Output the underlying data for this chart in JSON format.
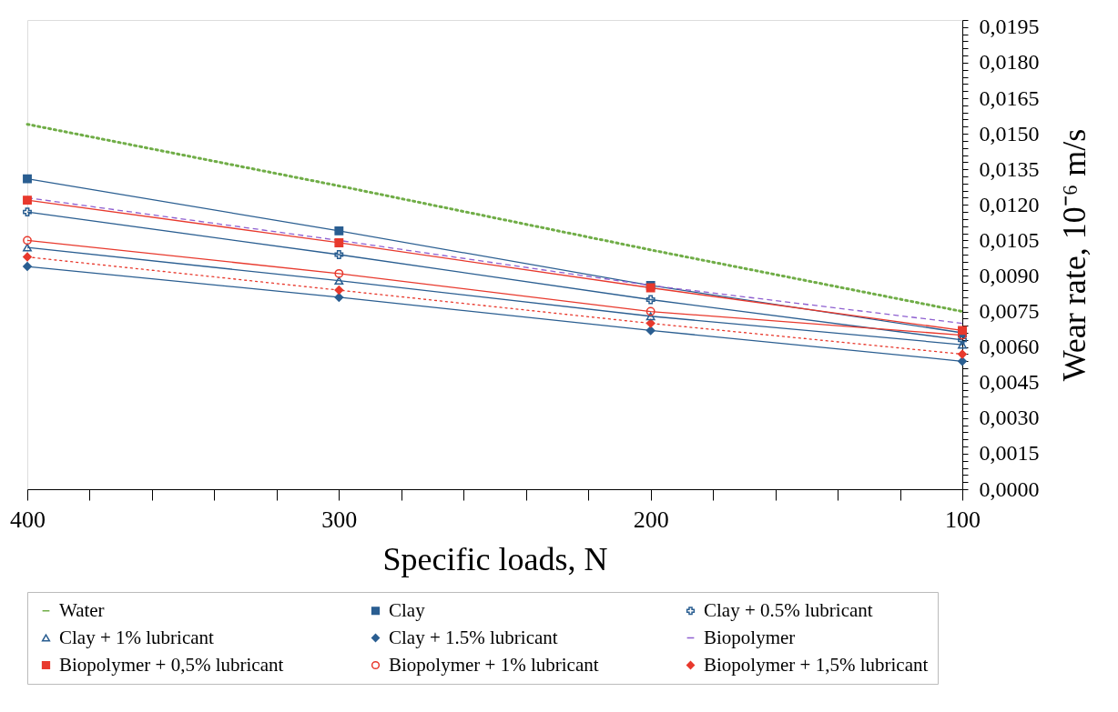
{
  "chart_data": {
    "type": "line",
    "xlabel": "Specific loads, N",
    "ylabel": "Wear rate, 10⁻⁶ m/s",
    "x": [
      400,
      300,
      200,
      100
    ],
    "xlim": [
      400,
      100
    ],
    "xticks": [
      {
        "value": 400,
        "label": "400"
      },
      {
        "value": 380,
        "label": null
      },
      {
        "value": 360,
        "label": null
      },
      {
        "value": 340,
        "label": null
      },
      {
        "value": 320,
        "label": null
      },
      {
        "value": 300,
        "label": "300"
      },
      {
        "value": 280,
        "label": null
      },
      {
        "value": 260,
        "label": null
      },
      {
        "value": 240,
        "label": null
      },
      {
        "value": 220,
        "label": null
      },
      {
        "value": 200,
        "label": "200"
      },
      {
        "value": 180,
        "label": null
      },
      {
        "value": 160,
        "label": null
      },
      {
        "value": 140,
        "label": null
      },
      {
        "value": 120,
        "label": null
      },
      {
        "value": 100,
        "label": "100"
      }
    ],
    "ylim": [
      0,
      0.0198
    ],
    "yticks": [
      {
        "value": 0,
        "label": "0,0000"
      },
      {
        "value": 0.0003,
        "label": null
      },
      {
        "value": 0.0006,
        "label": null
      },
      {
        "value": 0.0009,
        "label": null
      },
      {
        "value": 0.0012,
        "label": null
      },
      {
        "value": 0.0015,
        "label": "0,0015"
      },
      {
        "value": 0.0018,
        "label": null
      },
      {
        "value": 0.0021,
        "label": null
      },
      {
        "value": 0.0024,
        "label": null
      },
      {
        "value": 0.0027,
        "label": null
      },
      {
        "value": 0.003,
        "label": "0,0030"
      },
      {
        "value": 0.0033,
        "label": null
      },
      {
        "value": 0.0036,
        "label": null
      },
      {
        "value": 0.0039,
        "label": null
      },
      {
        "value": 0.0042,
        "label": null
      },
      {
        "value": 0.0045,
        "label": "0,0045"
      },
      {
        "value": 0.0048,
        "label": null
      },
      {
        "value": 0.0051,
        "label": null
      },
      {
        "value": 0.0054,
        "label": null
      },
      {
        "value": 0.0057,
        "label": null
      },
      {
        "value": 0.006,
        "label": "0,0060"
      },
      {
        "value": 0.0063,
        "label": null
      },
      {
        "value": 0.0066,
        "label": null
      },
      {
        "value": 0.0069,
        "label": null
      },
      {
        "value": 0.0072,
        "label": null
      },
      {
        "value": 0.0075,
        "label": "0,0075"
      },
      {
        "value": 0.0078,
        "label": null
      },
      {
        "value": 0.0081,
        "label": null
      },
      {
        "value": 0.0084,
        "label": null
      },
      {
        "value": 0.0087,
        "label": null
      },
      {
        "value": 0.009,
        "label": "0,0090"
      },
      {
        "value": 0.0093,
        "label": null
      },
      {
        "value": 0.0096,
        "label": null
      },
      {
        "value": 0.0099,
        "label": null
      },
      {
        "value": 0.0102,
        "label": null
      },
      {
        "value": 0.0105,
        "label": "0,0105"
      },
      {
        "value": 0.0108,
        "label": null
      },
      {
        "value": 0.0111,
        "label": null
      },
      {
        "value": 0.0114,
        "label": null
      },
      {
        "value": 0.0117,
        "label": null
      },
      {
        "value": 0.012,
        "label": "0,0120"
      },
      {
        "value": 0.0123,
        "label": null
      },
      {
        "value": 0.0126,
        "label": null
      },
      {
        "value": 0.0129,
        "label": null
      },
      {
        "value": 0.0132,
        "label": null
      },
      {
        "value": 0.0135,
        "label": "0,0135"
      },
      {
        "value": 0.0138,
        "label": null
      },
      {
        "value": 0.0141,
        "label": null
      },
      {
        "value": 0.0144,
        "label": null
      },
      {
        "value": 0.0147,
        "label": null
      },
      {
        "value": 0.015,
        "label": "0,0150"
      },
      {
        "value": 0.0153,
        "label": null
      },
      {
        "value": 0.0156,
        "label": null
      },
      {
        "value": 0.0159,
        "label": null
      },
      {
        "value": 0.0162,
        "label": null
      },
      {
        "value": 0.0165,
        "label": "0,0165"
      },
      {
        "value": 0.0168,
        "label": null
      },
      {
        "value": 0.0171,
        "label": null
      },
      {
        "value": 0.0174,
        "label": null
      },
      {
        "value": 0.0177,
        "label": null
      },
      {
        "value": 0.018,
        "label": "0,0180"
      },
      {
        "value": 0.0183,
        "label": null
      },
      {
        "value": 0.0186,
        "label": null
      },
      {
        "value": 0.0189,
        "label": null
      },
      {
        "value": 0.0192,
        "label": null
      },
      {
        "value": 0.0195,
        "label": "0,0195"
      },
      {
        "value": 0.0198,
        "label": null
      }
    ],
    "grid": false,
    "legend": "bottom",
    "series": [
      {
        "name": "Water",
        "color": "#70ad47",
        "marker": "none",
        "line_style": "dotted",
        "values": [
          0.0154,
          0.0128,
          0.0101,
          0.0075
        ]
      },
      {
        "name": "Clay",
        "color": "#2a5e91",
        "marker": "square",
        "line_style": "solid",
        "values": [
          0.0131,
          0.0109,
          0.0086,
          0.0066
        ]
      },
      {
        "name": "Clay + 0.5% lubricant",
        "color": "#2a5e91",
        "marker": "cross",
        "line_style": "solid",
        "values": [
          0.0117,
          0.0099,
          0.008,
          0.0063
        ]
      },
      {
        "name": "Clay + 1% lubricant",
        "color": "#2a5e91",
        "marker": "triangle",
        "line_style": "solid",
        "values": [
          0.0102,
          0.0088,
          0.0073,
          0.0061
        ]
      },
      {
        "name": "Clay + 1.5% lubricant",
        "color": "#2a5e91",
        "marker": "diamond",
        "line_style": "solid",
        "values": [
          0.0094,
          0.0081,
          0.0067,
          0.0054
        ]
      },
      {
        "name": "Biopolymer",
        "color": "#8e5fd0",
        "marker": "none",
        "line_style": "dashed",
        "values": [
          0.0123,
          0.0105,
          0.0086,
          0.007
        ]
      },
      {
        "name": "Biopolymer + 0,5% lubricant",
        "color": "#e8392d",
        "marker": "square",
        "line_style": "solid",
        "values": [
          0.0122,
          0.0104,
          0.0085,
          0.0067
        ]
      },
      {
        "name": "Biopolymer + 1% lubricant",
        "color": "#e8392d",
        "marker": "circle",
        "line_style": "solid",
        "values": [
          0.0105,
          0.0091,
          0.0075,
          0.0065
        ]
      },
      {
        "name": "Biopolymer + 1,5% lubricant",
        "color": "#e8392d",
        "marker": "diamond",
        "line_style": "dotted",
        "values": [
          0.0098,
          0.0084,
          0.007,
          0.0057
        ]
      }
    ]
  }
}
